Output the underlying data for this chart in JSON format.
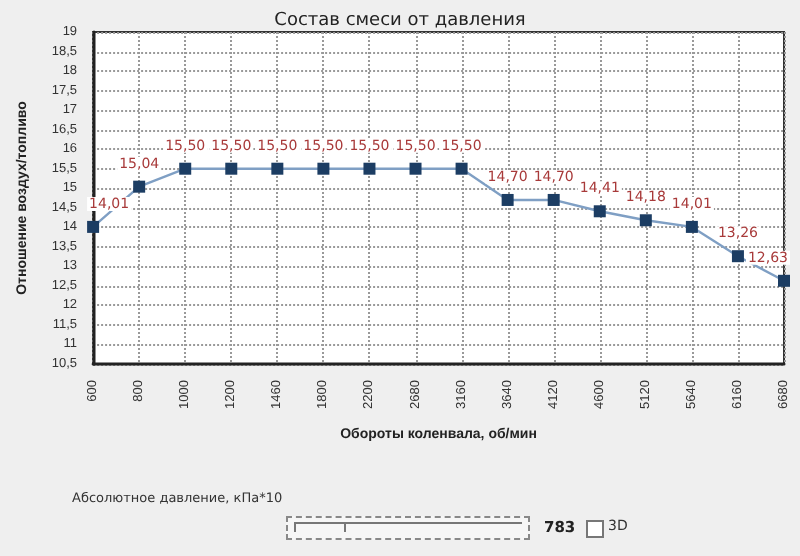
{
  "chart_data": {
    "type": "line",
    "title": "Состав смеси от давления",
    "xlabel": "Обороты коленвала, об/мин",
    "ylabel": "Отношение воздух/топливо",
    "categories": [
      "600",
      "800",
      "1000",
      "1200",
      "1460",
      "1800",
      "2200",
      "2680",
      "3160",
      "3640",
      "4120",
      "4600",
      "5120",
      "5640",
      "6160",
      "6680"
    ],
    "series": [
      {
        "color": "#1c3d63",
        "values": [
          14.01,
          15.04,
          15.5,
          15.5,
          15.5,
          15.5,
          15.5,
          15.5,
          15.5,
          14.7,
          14.7,
          14.41,
          14.18,
          14.01,
          13.26,
          12.63
        ],
        "value_labels": [
          "14,01",
          "15,04",
          "15,50",
          "15,50",
          "15,50",
          "15,50",
          "15,50",
          "15,50",
          "15,50",
          "14,70",
          "14,70",
          "14,41",
          "14,18",
          "14,01",
          "13,26",
          "12,63"
        ]
      }
    ],
    "ylim": [
      10.5,
      19
    ],
    "yticks": [
      {
        "value": 10.5,
        "label": "10,5"
      },
      11,
      {
        "value": 11.5,
        "label": "11,5"
      },
      12,
      {
        "value": 12.5,
        "label": "12,5"
      },
      13,
      {
        "value": 13.5,
        "label": "13,5"
      },
      14,
      {
        "value": 14.5,
        "label": "14,5"
      },
      15,
      {
        "value": 15.5,
        "label": "15,5"
      },
      16,
      {
        "value": 16.5,
        "label": "16,5"
      },
      17,
      {
        "value": 17.5,
        "label": "17,5"
      },
      18,
      {
        "value": 18.5,
        "label": "18,5"
      },
      19
    ],
    "grid": true,
    "marker": "square",
    "line_style": "solid",
    "annotations": [
      "Абсолютное давление, кПа*10",
      "783",
      "3D"
    ]
  }
}
